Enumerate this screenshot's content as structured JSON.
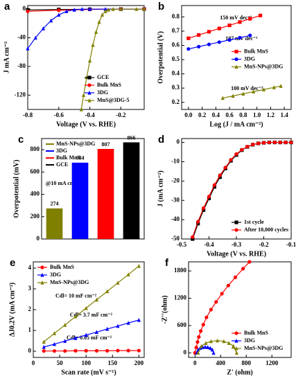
{
  "chart_data": [
    {
      "type": "line",
      "label": "a",
      "x_label": "Voltage (V vs. RHE)",
      "y_label": "J mA cm⁻²",
      "xlim": [
        -0.8,
        -0.05
      ],
      "xticks": [
        -0.8,
        -0.6,
        -0.4,
        -0.2
      ],
      "ylim": [
        -140,
        5
      ],
      "yticks": [
        0,
        -40,
        -80,
        -120
      ],
      "legend": "lower right",
      "series": [
        {
          "name": "GCE",
          "color": "#000000",
          "marker": "square",
          "x": [
            -0.8,
            -0.6,
            -0.4,
            -0.2,
            -0.05
          ],
          "values": [
            -1,
            -0.5,
            -0.2,
            0,
            0
          ]
        },
        {
          "name": "Bulk MnS",
          "color": "#ff0000",
          "marker": "circle",
          "x": [
            -0.8,
            -0.6,
            -0.4,
            -0.2,
            -0.05
          ],
          "values": [
            -3,
            -1.5,
            -0.5,
            0,
            0
          ]
        },
        {
          "name": "3DG",
          "color": "#0000ff",
          "marker": "triangle",
          "x": [
            -0.8,
            -0.75,
            -0.7,
            -0.65,
            -0.6,
            -0.55,
            -0.5,
            -0.45,
            -0.4,
            -0.3,
            -0.2,
            -0.05
          ],
          "values": [
            -55,
            -40,
            -27,
            -16,
            -8,
            -3,
            -1,
            0,
            0,
            0,
            0,
            0
          ]
        },
        {
          "name": "MnS@3DG-5",
          "color": "#808000",
          "marker": "triangle",
          "x": [
            -0.455,
            -0.44,
            -0.42,
            -0.4,
            -0.38,
            -0.36,
            -0.34,
            -0.32,
            -0.3,
            -0.28,
            -0.25,
            -0.2,
            -0.1,
            -0.05
          ],
          "values": [
            -140,
            -120,
            -95,
            -72,
            -50,
            -32,
            -18,
            -8,
            -3,
            -1,
            0,
            0,
            0,
            0
          ]
        }
      ]
    },
    {
      "type": "line",
      "label": "b",
      "x_label": "Log (J / mA cm⁻²)",
      "y_label": "Overpotential (V)",
      "xlim": [
        -0.1,
        1.5
      ],
      "xticks": [
        {
          "value": 0,
          "label": "0.0"
        },
        0.2,
        0.4,
        0.6,
        0.8,
        {
          "value": 1,
          "label": "1.0"
        },
        1.2,
        1.4
      ],
      "ylim": [
        0.15,
        0.88
      ],
      "yticks": [
        0.2,
        0.3,
        0.4,
        0.5,
        0.6,
        0.7,
        0.8
      ],
      "legend": "center right",
      "annotations": [
        "150 mV dec⁻¹",
        "107 mV dec⁻¹",
        "100 mV dec⁻¹"
      ],
      "series": [
        {
          "name": "Bulk MnS",
          "color": "#ff0000",
          "marker": "square",
          "x": [
            0,
            0.15,
            0.3,
            0.45,
            0.6,
            0.75,
            0.9,
            1.05
          ],
          "values": [
            0.65,
            0.673,
            0.696,
            0.719,
            0.741,
            0.764,
            0.787,
            0.81
          ]
        },
        {
          "name": "3DG",
          "color": "#0000ff",
          "marker": "circle",
          "x": [
            0,
            0.15,
            0.3,
            0.45,
            0.6,
            0.75,
            0.9
          ],
          "values": [
            0.575,
            0.591,
            0.607,
            0.623,
            0.638,
            0.654,
            0.67
          ]
        },
        {
          "name": "MnS-NPs@3DG",
          "color": "#808000",
          "marker": "triangle",
          "x": [
            0.5,
            0.65,
            0.8,
            0.95,
            1.1,
            1.25,
            1.35
          ],
          "values": [
            0.23,
            0.245,
            0.26,
            0.275,
            0.29,
            0.305,
            0.315
          ]
        }
      ]
    },
    {
      "type": "bar",
      "label": "c",
      "y_label": "Overpotential (mV)",
      "legend": "upper left",
      "categories": [
        "MnS-NPs@3DG",
        "3DG",
        "Bulk MnS",
        "GCE"
      ],
      "values": [
        274,
        684,
        807,
        866
      ],
      "colors": [
        "#808000",
        "#0000ff",
        "#ff0000",
        "#000000"
      ],
      "ylim": [
        0,
        900
      ],
      "yticks": [
        0,
        200,
        400,
        600,
        800
      ],
      "annotations": [
        "@10 mA cm⁻²"
      ]
    },
    {
      "type": "line",
      "label": "d",
      "x_label": "Voltage (V vs. RHE)",
      "y_label": "J (mA cm⁻²)",
      "xlim": [
        -0.5,
        -0.1
      ],
      "xticks": [
        -0.5,
        -0.4,
        -0.3,
        -0.2,
        -0.1
      ],
      "ylim": [
        -50,
        2
      ],
      "yticks": [
        0,
        -10,
        -20,
        -30,
        -40,
        -50
      ],
      "legend": "lower right",
      "series": [
        {
          "name": "1st cycle",
          "color": "#000000",
          "marker": "square",
          "x": [
            -0.46,
            -0.44,
            -0.42,
            -0.4,
            -0.38,
            -0.36,
            -0.34,
            -0.32,
            -0.3,
            -0.28,
            -0.26,
            -0.24,
            -0.22,
            -0.2,
            -0.18,
            -0.16,
            -0.14,
            -0.12,
            -0.1
          ],
          "values": [
            -50,
            -42,
            -35,
            -29,
            -23,
            -18,
            -13.5,
            -9.5,
            -6.5,
            -4,
            -2.3,
            -1.2,
            -0.5,
            -0.2,
            0,
            0,
            0,
            0,
            0
          ]
        },
        {
          "name": "After 10,000 cycles",
          "color": "#ff0000",
          "marker": "circle",
          "x": [
            -0.46,
            -0.44,
            -0.42,
            -0.4,
            -0.38,
            -0.36,
            -0.34,
            -0.32,
            -0.3,
            -0.28,
            -0.26,
            -0.24,
            -0.22,
            -0.2,
            -0.18,
            -0.16,
            -0.14,
            -0.12,
            -0.1
          ],
          "values": [
            -49,
            -41,
            -34,
            -28,
            -22,
            -17,
            -13,
            -9,
            -6,
            -3.8,
            -2.2,
            -1.1,
            -0.5,
            -0.2,
            0,
            0,
            0,
            0,
            0
          ]
        }
      ]
    },
    {
      "type": "line",
      "label": "e",
      "x_label": "Scan rate (mV s⁻¹)",
      "y_label": "ΔJ0.2V (mA cm⁻²)",
      "xlim": [
        0,
        210
      ],
      "xticks": [
        0,
        50,
        100,
        150,
        200
      ],
      "ylim": [
        -0.3,
        4.3
      ],
      "yticks": [
        0,
        1,
        2,
        3,
        4
      ],
      "legend": "upper left",
      "annotations": [
        "Cdl= 10 mF cm⁻²",
        "Cdl= 3.7 mF cm⁻²",
        "Cdl= 0.05 mF cm⁻²"
      ],
      "series": [
        {
          "name": "Bulk MnS",
          "color": "#ff0000",
          "marker": "circle",
          "x": [
            20,
            40,
            60,
            80,
            100,
            120,
            140,
            160,
            180,
            200
          ],
          "values": [
            0.01,
            0.01,
            0.01,
            0.02,
            0.02,
            0.02,
            0.02,
            0.03,
            0.03,
            0.03
          ]
        },
        {
          "name": "3DG",
          "color": "#0000ff",
          "marker": "triangle",
          "x": [
            20,
            40,
            60,
            80,
            100,
            120,
            140,
            160,
            180,
            200
          ],
          "values": [
            0.2,
            0.34,
            0.49,
            0.63,
            0.78,
            0.92,
            1.07,
            1.21,
            1.36,
            1.5
          ]
        },
        {
          "name": "MnS-NPs@3DG",
          "color": "#808000",
          "marker": "triangle",
          "x": [
            20,
            40,
            60,
            80,
            100,
            120,
            140,
            160,
            180,
            200
          ],
          "values": [
            0.45,
            0.86,
            1.26,
            1.67,
            2.07,
            2.48,
            2.88,
            3.29,
            3.69,
            4.1
          ]
        }
      ]
    },
    {
      "type": "line",
      "label": "f",
      "x_label": "Z' (ohm)",
      "y_label": "-Z''(ohm)",
      "xlim": [
        -100,
        1500
      ],
      "xticks": [
        0,
        400,
        800,
        1200
      ],
      "ylim": [
        -100,
        2000
      ],
      "yticks": [
        0,
        600,
        1200,
        1800
      ],
      "legend": "lower right",
      "series": [
        {
          "name": "Bulk MnS",
          "color": "#ff0000",
          "marker": "circle",
          "x": [
            0,
            20,
            40,
            60,
            90,
            130,
            180,
            250,
            330,
            420,
            520,
            630,
            750,
            850
          ],
          "values": [
            0,
            120,
            240,
            350,
            480,
            620,
            780,
            950,
            1120,
            1300,
            1480,
            1660,
            1850,
            2000
          ]
        },
        {
          "name": "3DG",
          "color": "#0000ff",
          "marker": "triangle",
          "x": [
            30,
            50,
            80,
            120,
            160,
            200,
            240,
            270,
            290
          ],
          "values": [
            0,
            70,
            105,
            125,
            130,
            125,
            105,
            70,
            0
          ]
        },
        {
          "name": "MnS-NPs@3DG",
          "color": "#808000",
          "marker": "triangle",
          "x": [
            50,
            100,
            170,
            250,
            350,
            450,
            530,
            600,
            650
          ],
          "values": [
            0,
            150,
            215,
            255,
            270,
            255,
            215,
            150,
            0
          ]
        }
      ]
    }
  ]
}
